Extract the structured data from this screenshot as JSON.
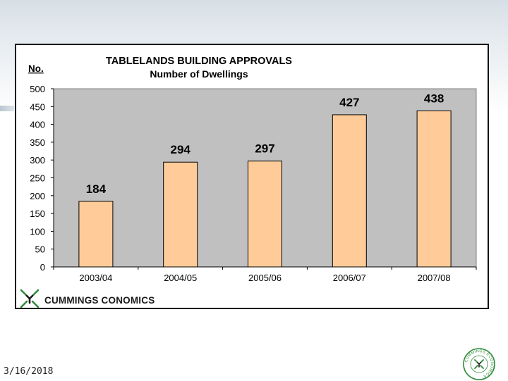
{
  "slide": {
    "date": "3/16/2018",
    "accent": "#2e8b3a"
  },
  "brand": {
    "name": "CUMMINGS CONOMICS",
    "logo_icon": "cummings-economics-logo-icon",
    "seal_icon": "cummings-economics-seal-icon",
    "seal_text": "CUMMINGS ECONOMICS"
  },
  "chart_data": {
    "type": "bar",
    "title": "TABLELANDS BUILDING APPROVALS",
    "subtitle": "Number of Dwellings",
    "ylabel": "No.",
    "xlabel": "",
    "categories": [
      "2003/04",
      "2004/05",
      "2005/06",
      "2006/07",
      "2007/08"
    ],
    "values": [
      184,
      294,
      297,
      427,
      438
    ],
    "value_labels": [
      "184",
      "294",
      "297",
      "427",
      "438"
    ],
    "ylim": [
      0,
      500
    ],
    "yticks": [
      0,
      50,
      100,
      150,
      200,
      250,
      300,
      350,
      400,
      450,
      500
    ],
    "ytick_labels": [
      "0",
      "50",
      "100",
      "150",
      "200",
      "250",
      "300",
      "350",
      "400",
      "450",
      "500"
    ],
    "grid": false,
    "legend": "none",
    "bar_color": "#ffcc99",
    "plot_background": "#c0c0c0"
  }
}
